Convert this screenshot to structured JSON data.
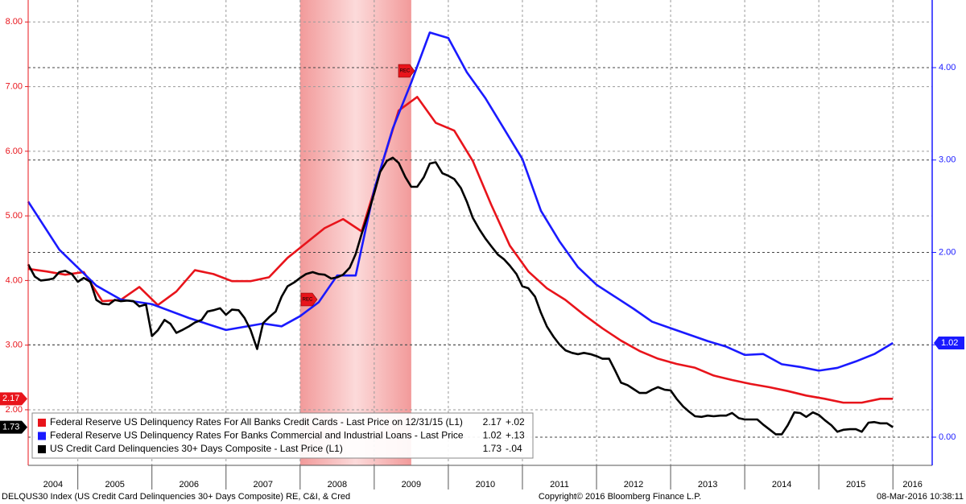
{
  "chart_data": {
    "type": "line",
    "xlim": [
      2004.33,
      2016.53
    ],
    "xticks": [
      2004,
      2005,
      2006,
      2007,
      2008,
      2009,
      2010,
      2011,
      2012,
      2013,
      2014,
      2015,
      2016
    ],
    "ylim": [
      1.14,
      8.34
    ],
    "yticks": [
      {
        "value": 2,
        "label": "2.00"
      },
      {
        "value": 3,
        "label": "3.00"
      },
      {
        "value": 4,
        "label": "4.00"
      },
      {
        "value": 5,
        "label": "5.00"
      },
      {
        "value": 6,
        "label": "6.00"
      },
      {
        "value": 7,
        "label": "7.00"
      },
      {
        "value": 8,
        "label": "8.00"
      }
    ],
    "y2lim": [
      -0.305,
      4.732
    ],
    "y2ticks": [
      {
        "value": 0,
        "label": "0.00"
      },
      {
        "value": 1,
        "label": "1.00"
      },
      {
        "value": 2,
        "label": "2.00"
      },
      {
        "value": 3,
        "label": "3.00"
      },
      {
        "value": 4,
        "label": "4.00"
      }
    ],
    "left_axis_color": "#e8141b",
    "right_axis_color": "#1a1aff",
    "grid": true,
    "recession": [
      2008.0,
      2009.5
    ],
    "annotations": [
      "REC",
      "REC"
    ],
    "series": [
      {
        "name": "Federal Reserve US Delinquency Rates For All Banks Credit Cards - Last Price on 12/31/15  (L1)",
        "legend_price": "2.17",
        "legend_change": "+.02",
        "color": "#e8141b",
        "axis": "y",
        "x": [
          2004.33,
          2004.58,
          2004.83,
          2005.08,
          2005.33,
          2005.58,
          2005.83,
          2006.08,
          2006.33,
          2006.58,
          2006.83,
          2007.08,
          2007.33,
          2007.58,
          2007.83,
          2008.08,
          2008.33,
          2008.58,
          2008.83,
          2009.08,
          2009.33,
          2009.58,
          2009.83,
          2010.08,
          2010.33,
          2010.58,
          2010.83,
          2011.08,
          2011.33,
          2011.58,
          2011.83,
          2012.08,
          2012.33,
          2012.58,
          2012.83,
          2013.08,
          2013.33,
          2013.58,
          2013.83,
          2014.08,
          2014.33,
          2014.58,
          2014.83,
          2015.08,
          2015.33,
          2015.58,
          2015.83,
          2016.0
        ],
        "values": [
          4.18,
          4.14,
          4.09,
          4.13,
          3.68,
          3.7,
          3.9,
          3.62,
          3.83,
          4.16,
          4.1,
          3.99,
          3.99,
          4.05,
          4.35,
          4.58,
          4.81,
          4.95,
          4.76,
          5.7,
          6.63,
          6.84,
          6.44,
          6.32,
          5.85,
          5.17,
          4.54,
          4.14,
          3.88,
          3.7,
          3.47,
          3.26,
          3.07,
          2.91,
          2.79,
          2.71,
          2.65,
          2.53,
          2.46,
          2.4,
          2.35,
          2.29,
          2.22,
          2.17,
          2.11,
          2.11,
          2.17,
          2.17
        ]
      },
      {
        "name": "Federal Reserve US Delinquency Rates For Banks Commercial and Industrial Loans - Last Price",
        "legend_price": "1.02",
        "legend_change": "+.13",
        "color": "#1a1aff",
        "axis": "y2",
        "x": [
          2004.33,
          2004.75,
          2005.25,
          2005.58,
          2006.0,
          2006.5,
          2007.0,
          2007.5,
          2007.75,
          2008.0,
          2008.25,
          2008.5,
          2008.75,
          2009.0,
          2009.25,
          2009.5,
          2009.75,
          2010.0,
          2010.25,
          2010.5,
          2010.75,
          2011.0,
          2011.25,
          2011.5,
          2011.75,
          2012.0,
          2012.25,
          2012.5,
          2012.75,
          2013.0,
          2013.25,
          2013.5,
          2013.75,
          2014.0,
          2014.25,
          2014.5,
          2014.75,
          2015.0,
          2015.25,
          2015.5,
          2015.75,
          2016.0
        ],
        "values": [
          2.55,
          2.03,
          1.64,
          1.49,
          1.44,
          1.29,
          1.16,
          1.23,
          1.2,
          1.31,
          1.46,
          1.75,
          1.75,
          2.68,
          3.34,
          3.84,
          4.38,
          4.32,
          3.95,
          3.67,
          3.34,
          3.01,
          2.45,
          2.12,
          1.84,
          1.65,
          1.52,
          1.39,
          1.25,
          1.18,
          1.11,
          1.04,
          0.98,
          0.89,
          0.9,
          0.79,
          0.76,
          0.72,
          0.75,
          0.82,
          0.9,
          1.02
        ]
      },
      {
        "name": "US Credit Card Delinquencies 30+ Days Composite - Last Price  (L1)",
        "legend_price": "1.73",
        "legend_change": "-.04",
        "color": "#000000",
        "axis": "y",
        "x": [
          2004.33,
          2004.42,
          2004.5,
          2004.58,
          2004.67,
          2004.75,
          2004.83,
          2004.92,
          2005.0,
          2005.08,
          2005.17,
          2005.25,
          2005.33,
          2005.42,
          2005.5,
          2005.58,
          2005.67,
          2005.75,
          2005.83,
          2005.92,
          2006.0,
          2006.08,
          2006.17,
          2006.25,
          2006.33,
          2006.42,
          2006.5,
          2006.58,
          2006.67,
          2006.75,
          2006.83,
          2006.92,
          2007.0,
          2007.08,
          2007.17,
          2007.25,
          2007.33,
          2007.42,
          2007.5,
          2007.58,
          2007.67,
          2007.75,
          2007.83,
          2007.92,
          2008.0,
          2008.08,
          2008.17,
          2008.25,
          2008.33,
          2008.42,
          2008.5,
          2008.58,
          2008.67,
          2008.75,
          2008.83,
          2008.92,
          2009.0,
          2009.08,
          2009.17,
          2009.25,
          2009.33,
          2009.42,
          2009.5,
          2009.58,
          2009.67,
          2009.75,
          2009.83,
          2009.92,
          2010.0,
          2010.08,
          2010.17,
          2010.25,
          2010.33,
          2010.42,
          2010.5,
          2010.58,
          2010.67,
          2010.75,
          2010.83,
          2010.92,
          2011.0,
          2011.08,
          2011.17,
          2011.25,
          2011.33,
          2011.42,
          2011.5,
          2011.58,
          2011.67,
          2011.75,
          2011.83,
          2011.92,
          2012.0,
          2012.08,
          2012.17,
          2012.25,
          2012.33,
          2012.42,
          2012.5,
          2012.58,
          2012.67,
          2012.75,
          2012.83,
          2012.92,
          2013.0,
          2013.08,
          2013.17,
          2013.25,
          2013.33,
          2013.42,
          2013.5,
          2013.58,
          2013.67,
          2013.75,
          2013.83,
          2013.92,
          2014.0,
          2014.08,
          2014.17,
          2014.25,
          2014.33,
          2014.42,
          2014.5,
          2014.58,
          2014.67,
          2014.75,
          2014.83,
          2014.92,
          2015.0,
          2015.08,
          2015.17,
          2015.25,
          2015.33,
          2015.42,
          2015.5,
          2015.58,
          2015.67,
          2015.75,
          2015.83,
          2015.92,
          2016.0
        ],
        "values": [
          4.25,
          4.06,
          4.0,
          4.01,
          4.03,
          4.13,
          4.15,
          4.1,
          3.98,
          4.04,
          3.98,
          3.7,
          3.64,
          3.63,
          3.7,
          3.68,
          3.69,
          3.68,
          3.6,
          3.63,
          3.14,
          3.23,
          3.39,
          3.33,
          3.19,
          3.24,
          3.29,
          3.35,
          3.39,
          3.52,
          3.54,
          3.57,
          3.47,
          3.55,
          3.54,
          3.42,
          3.24,
          2.94,
          3.34,
          3.43,
          3.52,
          3.75,
          3.91,
          3.97,
          4.04,
          4.1,
          4.13,
          4.1,
          4.09,
          4.03,
          4.05,
          4.09,
          4.2,
          4.41,
          4.72,
          5.04,
          5.35,
          5.68,
          5.85,
          5.9,
          5.82,
          5.6,
          5.45,
          5.45,
          5.6,
          5.81,
          5.83,
          5.66,
          5.62,
          5.57,
          5.43,
          5.22,
          4.97,
          4.79,
          4.65,
          4.53,
          4.4,
          4.33,
          4.23,
          4.1,
          3.91,
          3.88,
          3.75,
          3.5,
          3.29,
          3.13,
          3.01,
          2.92,
          2.88,
          2.86,
          2.88,
          2.86,
          2.83,
          2.79,
          2.79,
          2.61,
          2.42,
          2.38,
          2.32,
          2.26,
          2.26,
          2.31,
          2.35,
          2.31,
          2.3,
          2.17,
          2.05,
          1.97,
          1.9,
          1.89,
          1.91,
          1.9,
          1.91,
          1.91,
          1.95,
          1.87,
          1.85,
          1.85,
          1.85,
          1.77,
          1.7,
          1.62,
          1.62,
          1.76,
          1.96,
          1.95,
          1.89,
          1.96,
          1.92,
          1.84,
          1.76,
          1.66,
          1.69,
          1.7,
          1.7,
          1.66,
          1.8,
          1.81,
          1.79,
          1.79,
          1.73
        ]
      }
    ],
    "source": "DELQUS30 Index (US Credit Card Delinquencies 30+ Days Composite) RE, C&I, & Cred",
    "copyright": "Copyright© 2016 Bloomberg Finance L.P.",
    "timestamp": "08-Mar-2016 10:38:11"
  }
}
